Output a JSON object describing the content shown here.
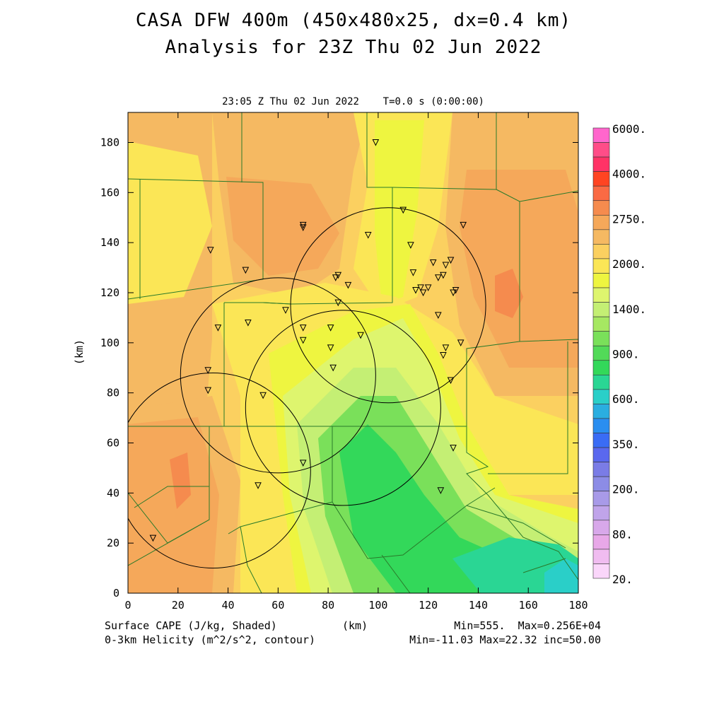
{
  "title": {
    "line1": "CASA DFW 400m (450x480x25, dx=0.4 km)",
    "line2": "Analysis for 23Z Thu 02 Jun 2022"
  },
  "timestamp": "23:05 Z Thu 02 Jun 2022    T=0.0 s (0:00:00)",
  "axes": {
    "x_label": "(km)",
    "y_label": "(km)",
    "x_range": [
      0,
      180
    ],
    "y_range": [
      0,
      192
    ],
    "x_ticks": [
      "0",
      "20",
      "40",
      "60",
      "80",
      "100",
      "120",
      "140",
      "160",
      "180"
    ],
    "y_ticks": [
      "0",
      "20",
      "40",
      "60",
      "80",
      "100",
      "120",
      "140",
      "160",
      "180"
    ]
  },
  "footer": {
    "left1": "Surface CAPE (J/kg, Shaded)",
    "left2": "0-3km Helicity (m^2/s^2, contour)",
    "center": "(km)",
    "right1": "Min=555.  Max=0.256E+04",
    "right2": "Min=-11.03 Max=22.32 inc=50.00"
  },
  "colorbar": {
    "labels": [
      "6000.",
      "4000.",
      "2750.",
      "2000.",
      "1400.",
      "900.",
      "600.",
      "350.",
      "200.",
      "80.",
      "20."
    ],
    "colors": [
      "#ff66cc",
      "#ff4d88",
      "#ff3366",
      "#ff4422",
      "#fa6a44",
      "#f58b4e",
      "#f5a85a",
      "#f5b962",
      "#fbd060",
      "#fbe656",
      "#eef540",
      "#def56e",
      "#c4ef74",
      "#a6e862",
      "#7ae05a",
      "#52da58",
      "#33d85a",
      "#2ad694",
      "#2acfc8",
      "#2aaee0",
      "#2a8ef0",
      "#3a6cf5",
      "#5a68ee",
      "#7a7ce6",
      "#8c8ce6",
      "#a89ae8",
      "#c0a4ea",
      "#d8a8ea",
      "#e8a8e8",
      "#f0bcf0",
      "#fad6fa"
    ]
  },
  "map_colors": {
    "orange": "#f5a85a",
    "light_orange": "#f5b962",
    "yellow_orange": "#fbd060",
    "yellow": "#fbe656",
    "yellow_green": "#eef540",
    "pale_green": "#def56e",
    "light_green": "#c4ef74",
    "mid_green": "#7ae05a",
    "green": "#33d85a",
    "teal": "#2ad694",
    "cyan": "#2acfc8",
    "dark_orange": "#f58b4e",
    "red_orange": "#fa6a44"
  },
  "radars": [
    {
      "x": 34,
      "y": 49
    },
    {
      "x": 60,
      "y": 87
    },
    {
      "x": 86,
      "y": 74
    },
    {
      "x": 104,
      "y": 115
    }
  ],
  "radar_radius_km": 39,
  "stations": [
    [
      99,
      180
    ],
    [
      110,
      153
    ],
    [
      134,
      147
    ],
    [
      70,
      147
    ],
    [
      70,
      146
    ],
    [
      96,
      143
    ],
    [
      113,
      139
    ],
    [
      33,
      137
    ],
    [
      129,
      133
    ],
    [
      122,
      132
    ],
    [
      127,
      131
    ],
    [
      47,
      129
    ],
    [
      114,
      128
    ],
    [
      126,
      127
    ],
    [
      124,
      126
    ],
    [
      84,
      127
    ],
    [
      83,
      126
    ],
    [
      88,
      123
    ],
    [
      117,
      122
    ],
    [
      120,
      122
    ],
    [
      115,
      121
    ],
    [
      131,
      121
    ],
    [
      130,
      120
    ],
    [
      118,
      120
    ],
    [
      84,
      116
    ],
    [
      63,
      113
    ],
    [
      124,
      111
    ],
    [
      48,
      108
    ],
    [
      36,
      106
    ],
    [
      70,
      106
    ],
    [
      81,
      106
    ],
    [
      93,
      103
    ],
    [
      70,
      101
    ],
    [
      133,
      100
    ],
    [
      127,
      98
    ],
    [
      81,
      98
    ],
    [
      126,
      95
    ],
    [
      32,
      89
    ],
    [
      82,
      90
    ],
    [
      129,
      85
    ],
    [
      32,
      81
    ],
    [
      54,
      79
    ],
    [
      130,
      58
    ],
    [
      70,
      52
    ],
    [
      52,
      43
    ],
    [
      125,
      41
    ],
    [
      10,
      22
    ]
  ]
}
